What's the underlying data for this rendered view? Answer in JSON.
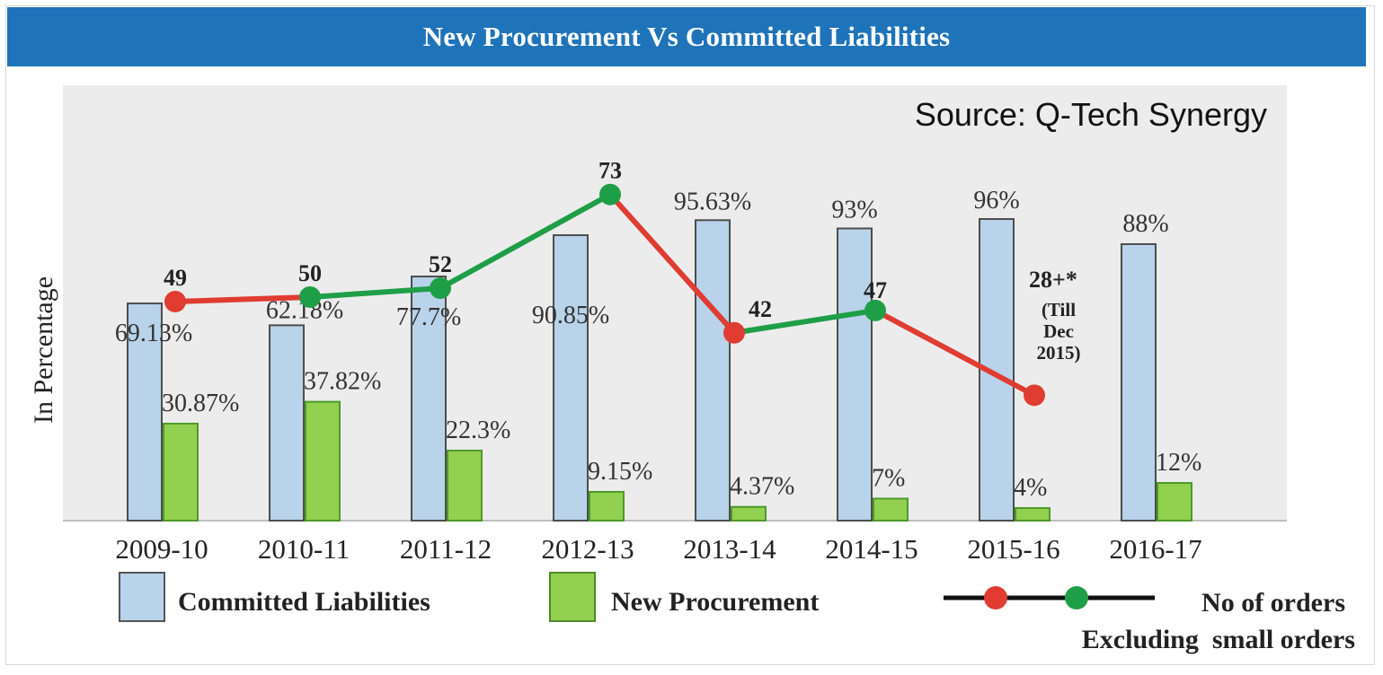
{
  "header": {
    "title": "New Procurement Vs Committed Liabilities"
  },
  "source_text": "Source: Q-Tech Synergy",
  "colors": {
    "header_bg": "#1f73b9",
    "committed": "#b9d3ea",
    "procurement": "#92d050",
    "line_red": "#e03c31",
    "line_green": "#1f9e48"
  },
  "chart_data": {
    "type": "bar",
    "ylabel": "In Percentage",
    "xlabel": "",
    "ylim": [
      0,
      100
    ],
    "categories": [
      "2009-10",
      "2010-11",
      "2011-12",
      "2012-13",
      "2013-14",
      "2014-15",
      "2015-16",
      "2016-17"
    ],
    "series": [
      {
        "name": "Committed Liabilities",
        "values": [
          69.13,
          62.18,
          77.7,
          90.85,
          95.63,
          93,
          96,
          88
        ],
        "labels": [
          "69.13%",
          "62.18%",
          "77.7%",
          "90.85%",
          "95.63%",
          "93%",
          "96%",
          "88%"
        ]
      },
      {
        "name": "New Procurement",
        "values": [
          30.87,
          37.82,
          22.3,
          9.15,
          4.37,
          7,
          4,
          12
        ],
        "labels": [
          "30.87%",
          "37.82%",
          "22.3%",
          "9.15%",
          "4.37%",
          "7%",
          "4%",
          "12%"
        ]
      }
    ],
    "orders": {
      "name": "No of orders Excluding small orders",
      "values": [
        49,
        50,
        52,
        73,
        42,
        47,
        28
      ],
      "labels": [
        "49",
        "50",
        "52",
        "73",
        "42",
        "47",
        "28+*"
      ],
      "point_colors": [
        "red",
        "green",
        "green",
        "green",
        "red",
        "green",
        "red"
      ],
      "segment_colors": [
        "red",
        "green",
        "green",
        "red",
        "green",
        "red"
      ],
      "note_lines": [
        "(Till",
        "Dec",
        "2015)"
      ]
    },
    "legend": {
      "committed": "Committed Liabilities",
      "procurement": "New Procurement",
      "orders_line1": "No of orders",
      "orders_line2": "Excluding  small orders"
    }
  }
}
